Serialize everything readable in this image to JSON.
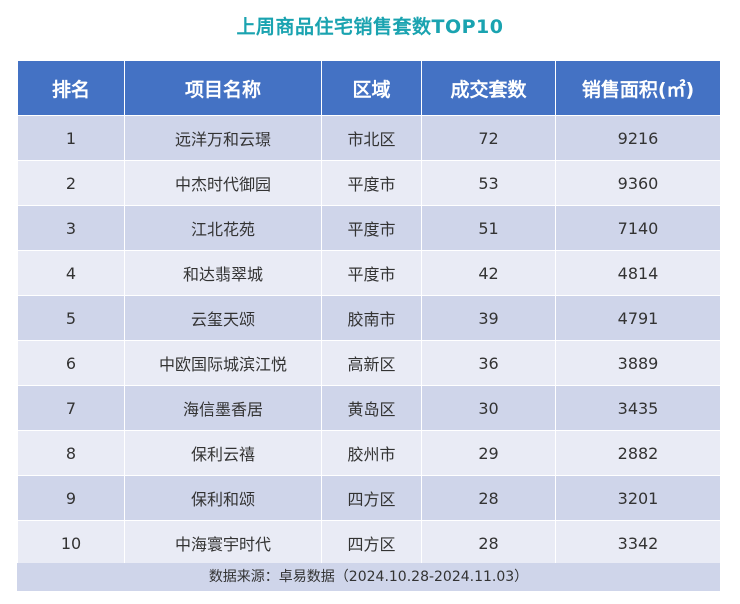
{
  "title": "上周商品住宅销售套数TOP10",
  "table": {
    "headers": [
      "排名",
      "项目名称",
      "区域",
      "成交套数",
      "销售面积(㎡)"
    ],
    "rows": [
      [
        "1",
        "远洋万和云璟",
        "市北区",
        "72",
        "9216"
      ],
      [
        "2",
        "中杰时代御园",
        "平度市",
        "53",
        "9360"
      ],
      [
        "3",
        "江北花苑",
        "平度市",
        "51",
        "7140"
      ],
      [
        "4",
        "和达翡翠城",
        "平度市",
        "42",
        "4814"
      ],
      [
        "5",
        "云玺天颂",
        "胶南市",
        "39",
        "4791"
      ],
      [
        "6",
        "中欧国际城滨江悦",
        "高新区",
        "36",
        "3889"
      ],
      [
        "7",
        "海信墨香居",
        "黄岛区",
        "30",
        "3435"
      ],
      [
        "8",
        "保利云禧",
        "胶州市",
        "29",
        "2882"
      ],
      [
        "9",
        "保利和颂",
        "四方区",
        "28",
        "3201"
      ],
      [
        "10",
        "中海寰宇时代",
        "四方区",
        "28",
        "3342"
      ]
    ]
  },
  "footer": "数据来源：卓易数据（2024.10.28-2024.11.03）",
  "colors": {
    "title": "#1aa3b0",
    "header_bg": "#4472c4",
    "row_odd": "#cfd5ea",
    "row_even": "#e9ebf5"
  }
}
